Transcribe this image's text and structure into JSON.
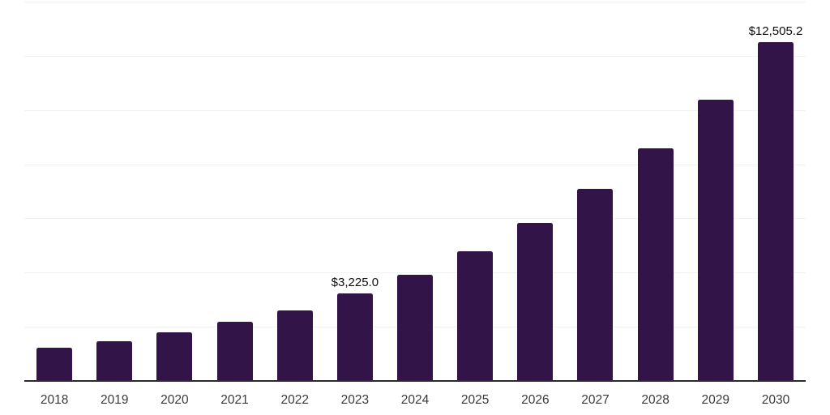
{
  "chart_data": {
    "type": "bar",
    "title": "",
    "xlabel": "",
    "ylabel": "",
    "categories": [
      "2018",
      "2019",
      "2020",
      "2021",
      "2022",
      "2023",
      "2024",
      "2025",
      "2026",
      "2027",
      "2028",
      "2029",
      "2030"
    ],
    "values": [
      1240,
      1480,
      1795,
      2175,
      2600,
      3225.0,
      3920,
      4795,
      5830,
      7080,
      8575,
      10370,
      12505.2
    ],
    "value_labels": [
      "",
      "",
      "",
      "",
      "",
      "$3,225.0",
      "",
      "",
      "",
      "",
      "",
      "",
      "$12,505.2"
    ],
    "ylim": [
      0,
      14000
    ],
    "gridline_step": 2000,
    "grid": "horizontal",
    "legend": "none",
    "y_axis_labels_visible": false,
    "colors": {
      "bar": "#331449",
      "axis_line": "#2b2b2b",
      "gridline": "#f2f2f2",
      "value_label": "#0d0d0d",
      "tick_label": "#3a3a3a",
      "background": "#ffffff"
    }
  }
}
